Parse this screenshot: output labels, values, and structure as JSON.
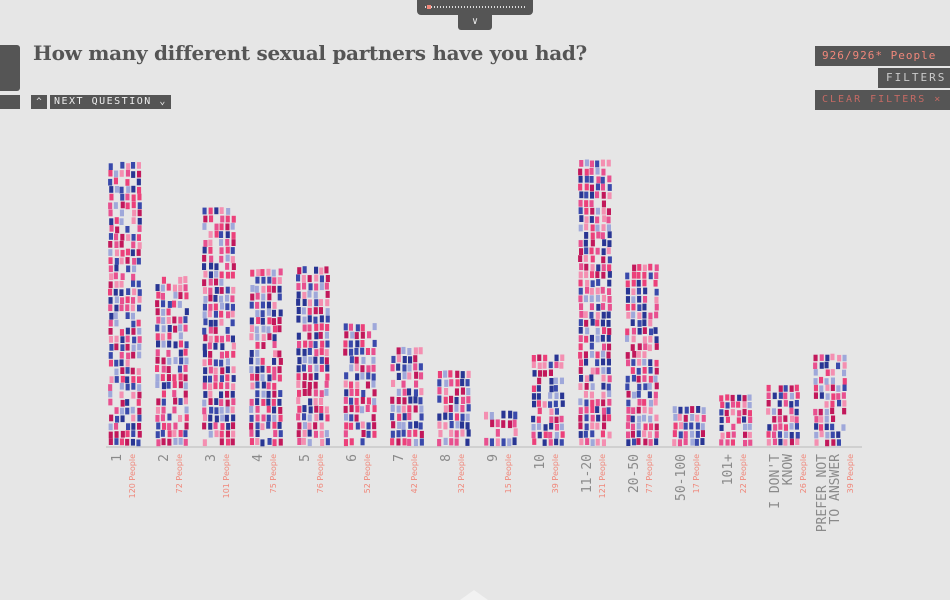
{
  "question": "How many different sexual partners have you had?",
  "nav": {
    "up_icon": "^",
    "next_label": "NEXT QUESTION",
    "down_icon": "⌄"
  },
  "top_toggle_icon": "chevrons-down-icon",
  "counter": {
    "text": "926/926* People"
  },
  "filters_label": "FILTERS",
  "clear_filters_label": "CLEAR FILTERS ×",
  "colors": {
    "accent": "#f0877a",
    "panel": "#555555",
    "figures": [
      "#e8508f",
      "#c2185b",
      "#f48fb1",
      "#283593",
      "#9fa8da",
      "#ec407a",
      "#3949ab"
    ]
  },
  "chart_data": {
    "type": "bar",
    "title": "How many different sexual partners have you had?",
    "xlabel": "",
    "ylabel": "",
    "categories": [
      [
        "1"
      ],
      [
        "2"
      ],
      [
        "3"
      ],
      [
        "4"
      ],
      [
        "5"
      ],
      [
        "6"
      ],
      [
        "7"
      ],
      [
        "8"
      ],
      [
        "9"
      ],
      [
        "10"
      ],
      [
        "11-20"
      ],
      [
        "20-50"
      ],
      [
        "50-100"
      ],
      [
        "101+"
      ],
      [
        "I DON'T",
        "KNOW"
      ],
      [
        "PREFER NOT",
        "TO ANSWER"
      ]
    ],
    "values": [
      120,
      72,
      101,
      75,
      76,
      52,
      42,
      32,
      15,
      39,
      121,
      77,
      17,
      22,
      26,
      39
    ],
    "value_labels": [
      "120 People",
      "72 People",
      "101 People",
      "75 People",
      "76 People",
      "52 People",
      "42 People",
      "32 People",
      "15 People",
      "39 People",
      "121 People",
      "77 People",
      "17 People",
      "22 People",
      "26 People",
      "39 People"
    ],
    "ylim": [
      0,
      125
    ],
    "grid": false,
    "legend": "none"
  }
}
